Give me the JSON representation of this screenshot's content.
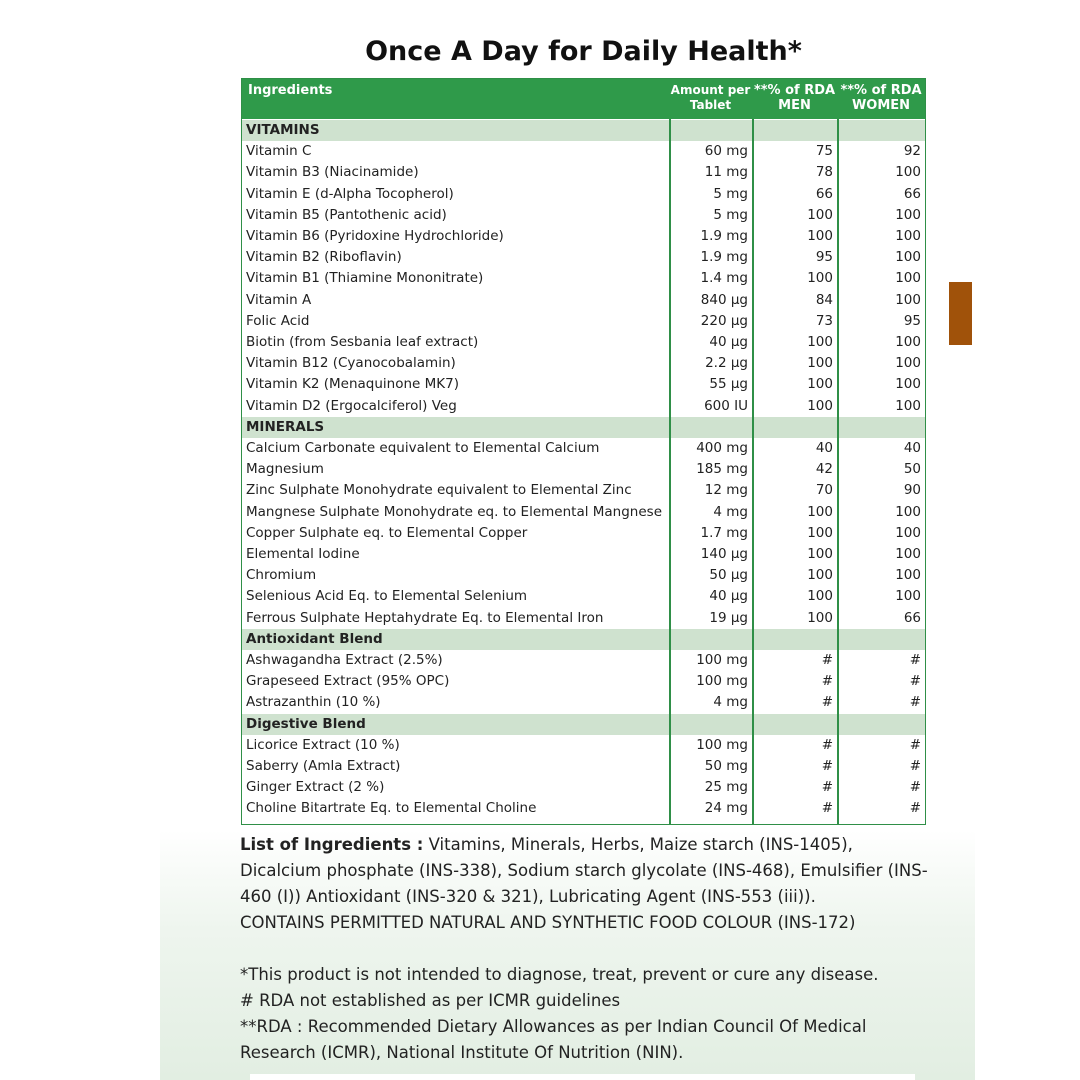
{
  "title": "Once A Day for Daily Health*",
  "table": {
    "header": [
      "Ingredients",
      "Amount per Tablet",
      "**% of RDA MEN",
      "**% of RDA WOMEN"
    ],
    "sections": [
      {
        "title": "VITAMINS",
        "rows": [
          [
            "Vitamin C",
            "60 mg",
            75,
            92
          ],
          [
            "Vitamin B3 (Niacinamide)",
            "11 mg",
            78,
            100
          ],
          [
            "Vitamin E (d-Alpha Tocopherol)",
            "5 mg",
            66,
            66
          ],
          [
            "Vitamin B5 (Pantothenic acid)",
            "5 mg",
            100,
            100
          ],
          [
            "Vitamin B6 (Pyridoxine Hydrochloride)",
            "1.9 mg",
            100,
            100
          ],
          [
            "Vitamin B2 (Riboflavin)",
            "1.9 mg",
            95,
            100
          ],
          [
            "Vitamin B1 (Thiamine Mononitrate)",
            "1.4 mg",
            100,
            100
          ],
          [
            "Vitamin A",
            "840 µg",
            84,
            100
          ],
          [
            "Folic Acid",
            "220 µg",
            73,
            95
          ],
          [
            "Biotin (from Sesbania leaf extract)",
            "40 µg",
            100,
            100
          ],
          [
            "Vitamin B12 (Cyanocobalamin)",
            "2.2 µg",
            100,
            100
          ],
          [
            "Vitamin K2 (Menaquinone MK7)",
            "55 µg",
            100,
            100
          ],
          [
            "Vitamin D2 (Ergocalciferol) Veg",
            "600 IU",
            100,
            100
          ]
        ]
      },
      {
        "title": "MINERALS",
        "rows": [
          [
            "Calcium Carbonate equivalent to Elemental Calcium",
            "400 mg",
            40,
            40
          ],
          [
            "Magnesium",
            "185 mg",
            42,
            50
          ],
          [
            "Zinc Sulphate Monohydrate equivalent to Elemental Zinc",
            "12 mg",
            70,
            90
          ],
          [
            "Mangnese Sulphate Monohydrate eq. to Elemental Mangnese",
            "4 mg",
            100,
            100
          ],
          [
            "Copper Sulphate eq. to Elemental Copper",
            "1.7 mg",
            100,
            100
          ],
          [
            "Elemental Iodine",
            "140 µg",
            100,
            100
          ],
          [
            "Chromium",
            "50 µg",
            100,
            100
          ],
          [
            "Selenious Acid Eq. to Elemental Selenium",
            "40 µg",
            100,
            100
          ],
          [
            "Ferrous Sulphate Heptahydrate  Eq. to Elemental Iron",
            "19 µg",
            100,
            66
          ]
        ]
      },
      {
        "title": "Antioxidant Blend",
        "rows": [
          [
            "Ashwagandha Extract (2.5%)",
            "100 mg",
            "#",
            "#"
          ],
          [
            "Grapeseed Extract (95% OPC)",
            "100 mg",
            "#",
            "#"
          ],
          [
            "Astrazanthin (10 %)",
            "4 mg",
            "#",
            "#"
          ]
        ]
      },
      {
        "title": "Digestive Blend",
        "rows": [
          [
            "Licorice Extract (10 %)",
            "100 mg",
            "#",
            "#"
          ],
          [
            "Saberry (Amla Extract)",
            "50 mg",
            "#",
            "#"
          ],
          [
            "Ginger Extract (2 %)",
            "25 mg",
            "#",
            "#"
          ],
          [
            "Choline Bitartrate Eq. to Elemental Choline",
            "24 mg",
            "#",
            "#"
          ]
        ]
      }
    ]
  },
  "notes": {
    "ingredients_label": "List of Ingredients :",
    "ingredients_text": "Vitamins, Minerals, Herbs, Maize starch (INS-1405), Dicalcium phosphate (INS-338), Sodium starch glycolate (INS-468), Emulsifier (INS-460 (I)) Antioxidant (INS-320 & 321), Lubricating Agent (INS-553 (iii)).",
    "colour": "CONTAINS PERMITTED NATURAL AND SYNTHETIC FOOD COLOUR (INS-172)",
    "disclaimer": "*This product is not intended to diagnose, treat, prevent or cure any disease.",
    "hash": "# RDA not established as per ICMR guidelines",
    "rda": "**RDA : Recommended Dietary Allowances as per Indian Council Of Medical Research (ICMR), National Institute Of Nutrition (NIN)."
  }
}
